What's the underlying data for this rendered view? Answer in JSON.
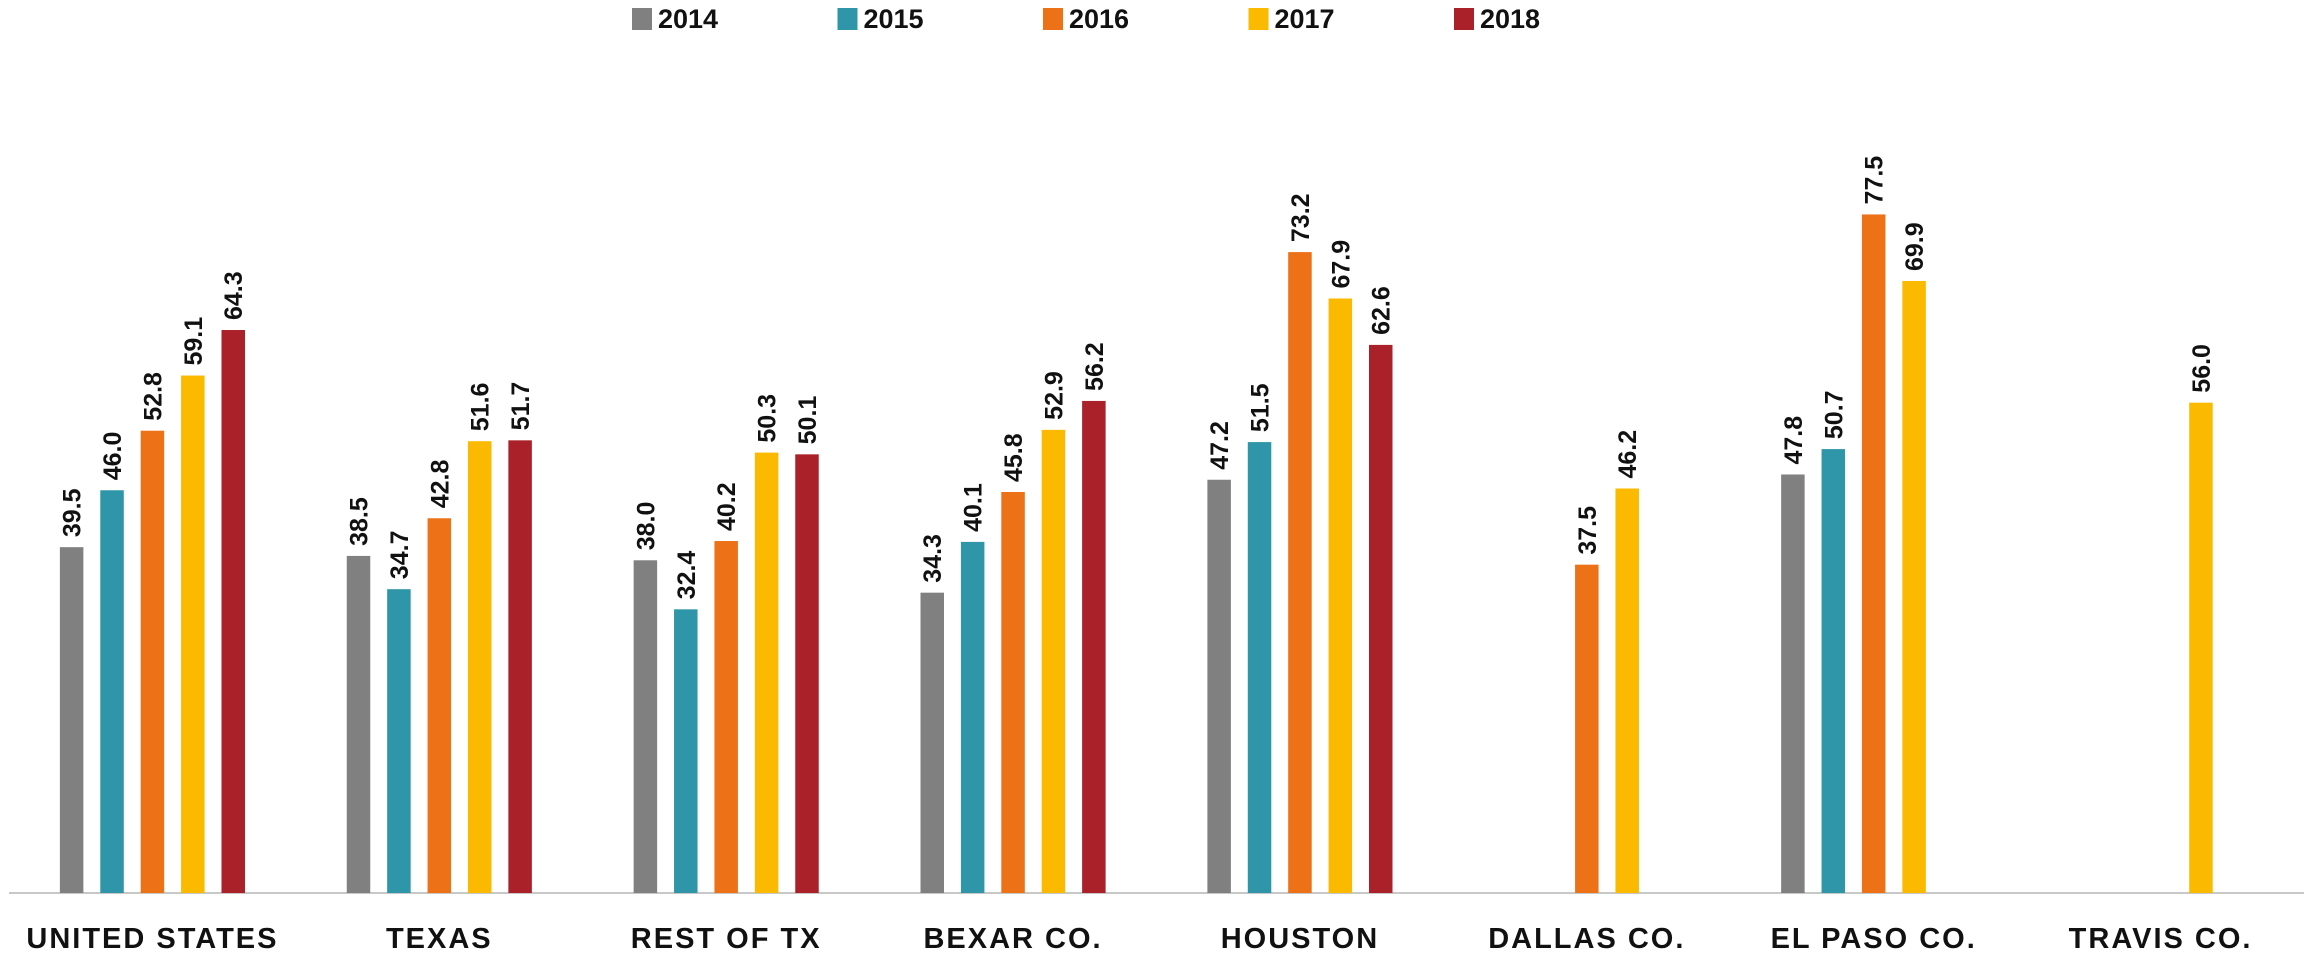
{
  "chart_data": {
    "type": "bar",
    "categories": [
      "UNITED STATES",
      "TEXAS",
      "REST OF TX",
      "BEXAR CO.",
      "HOUSTON",
      "DALLAS CO.",
      "EL PASO CO.",
      "TRAVIS CO."
    ],
    "ylim": [
      0,
      90
    ],
    "legend": "top",
    "series": [
      {
        "name": "2014",
        "color": "#808080",
        "values": [
          39.5,
          38.5,
          38.0,
          34.3,
          47.2,
          null,
          47.8,
          null
        ],
        "value_labels": [
          "39.5",
          "38.5",
          "38.0",
          "34.3",
          "47.2",
          null,
          "47.8",
          null
        ]
      },
      {
        "name": "2015",
        "color": "#2e96a8",
        "values": [
          46.0,
          34.7,
          32.4,
          40.1,
          51.5,
          null,
          50.7,
          null
        ],
        "value_labels": [
          "46.0",
          "34.7",
          "32.4",
          "40.1",
          "51.5",
          null,
          "50.7",
          null
        ]
      },
      {
        "name": "2016",
        "color": "#ed7117",
        "values": [
          52.8,
          42.8,
          40.2,
          45.8,
          73.2,
          37.5,
          77.5,
          null
        ],
        "value_labels": [
          "52.8",
          "42.8",
          "40.2",
          "45.8",
          "73.2",
          "37.5",
          "77.5",
          null
        ]
      },
      {
        "name": "2017",
        "color": "#fbb900",
        "values": [
          59.1,
          51.6,
          50.3,
          52.9,
          67.9,
          46.2,
          69.9,
          56.0
        ],
        "value_labels": [
          "59.1",
          "51.6",
          "50.3",
          "52.9",
          "67.9",
          "46.2",
          "69.9",
          "56.0"
        ]
      },
      {
        "name": "2018",
        "color": "#aa2129",
        "values": [
          64.3,
          51.7,
          50.1,
          56.2,
          62.6,
          null,
          null,
          null
        ],
        "value_labels": [
          "64.3",
          "51.7",
          "50.1",
          "56.2",
          "62.6",
          null,
          null,
          null
        ]
      }
    ]
  }
}
